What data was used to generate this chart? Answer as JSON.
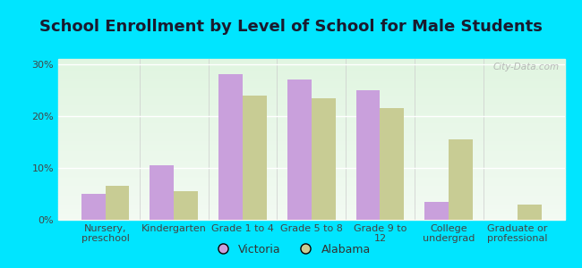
{
  "title": "School Enrollment by Level of School for Male Students",
  "categories": [
    "Nursery,\npreschool",
    "Kindergarten",
    "Grade 1 to 4",
    "Grade 5 to 8",
    "Grade 9 to\n12",
    "College\nundergrad",
    "Graduate or\nprofessional"
  ],
  "victoria": [
    5.0,
    10.5,
    28.0,
    27.0,
    25.0,
    3.5,
    0.0
  ],
  "alabama": [
    6.5,
    5.5,
    24.0,
    23.5,
    21.5,
    15.5,
    3.0
  ],
  "victoria_color": "#c9a0dc",
  "alabama_color": "#c8cc94",
  "background_outer": "#00e5ff",
  "background_inner": "#e8f5e8",
  "ylim": [
    0,
    31
  ],
  "yticks": [
    0,
    10,
    20,
    30
  ],
  "ytick_labels": [
    "0%",
    "10%",
    "20%",
    "30%"
  ],
  "bar_width": 0.35,
  "title_fontsize": 13,
  "tick_fontsize": 8,
  "legend_fontsize": 9,
  "watermark": "City-Data.com"
}
